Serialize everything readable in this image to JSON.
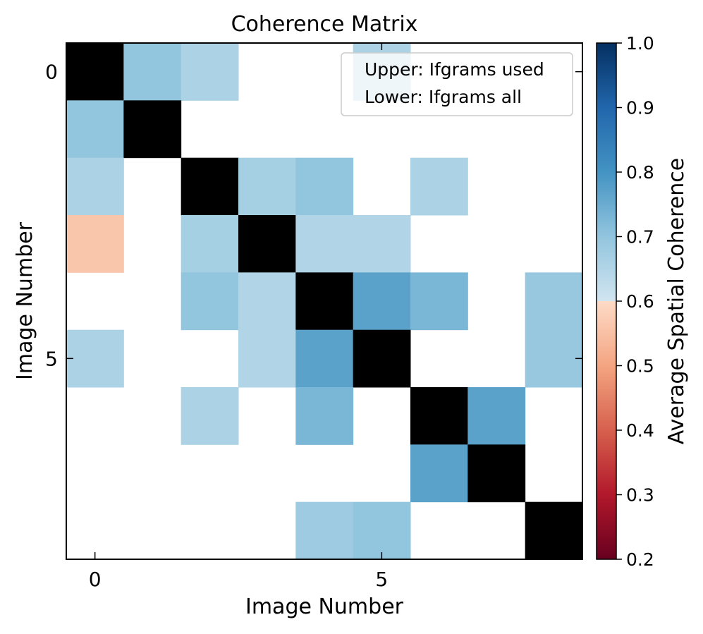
{
  "chart_data": {
    "type": "heatmap",
    "title": "Coherence Matrix",
    "xlabel": "Image Number",
    "ylabel": "Image Number",
    "xticks": [
      0,
      5
    ],
    "yticks": [
      0,
      5
    ],
    "n": 9,
    "matrix": [
      [
        null,
        0.7,
        0.66,
        null,
        null,
        0.66,
        null,
        null,
        null
      ],
      [
        0.7,
        null,
        null,
        null,
        null,
        null,
        null,
        null,
        null
      ],
      [
        0.66,
        null,
        null,
        0.67,
        0.7,
        null,
        0.66,
        null,
        null
      ],
      [
        0.56,
        null,
        0.67,
        null,
        0.65,
        0.65,
        null,
        null,
        null
      ],
      [
        null,
        null,
        0.7,
        0.65,
        null,
        0.77,
        0.73,
        null,
        0.69
      ],
      [
        0.66,
        null,
        null,
        0.65,
        0.77,
        null,
        null,
        null,
        0.69
      ],
      [
        null,
        null,
        0.66,
        null,
        0.73,
        null,
        null,
        0.77,
        null
      ],
      [
        null,
        null,
        null,
        null,
        null,
        null,
        0.77,
        null,
        null
      ],
      [
        null,
        null,
        null,
        null,
        0.68,
        0.7,
        null,
        null,
        null
      ]
    ],
    "diagonal_color": "#000000",
    "colorbar": {
      "label": "Average Spatial Coherence",
      "range": [
        0.2,
        1.0
      ],
      "ticks": [
        "0.2",
        "0.3",
        "0.4",
        "0.5",
        "0.6",
        "0.7",
        "0.8",
        "0.9",
        "1.0"
      ],
      "colormap": "RdBu",
      "color_stops": [
        {
          "value": 0.2,
          "color": "#67001f"
        },
        {
          "value": 0.3,
          "color": "#b2182b"
        },
        {
          "value": 0.4,
          "color": "#d6604d"
        },
        {
          "value": 0.5,
          "color": "#f4a582"
        },
        {
          "value": 0.5999,
          "color": "#fddbc7"
        },
        {
          "value": 0.6,
          "color": "#d1e5f0"
        },
        {
          "value": 0.7,
          "color": "#92c5de"
        },
        {
          "value": 0.8,
          "color": "#4393c3"
        },
        {
          "value": 0.9,
          "color": "#2166ac"
        },
        {
          "value": 1.0,
          "color": "#053061"
        }
      ]
    },
    "legend": {
      "position": "top-right",
      "entries": [
        "Upper: Ifgrams used",
        "Lower: Ifgrams all"
      ]
    }
  }
}
